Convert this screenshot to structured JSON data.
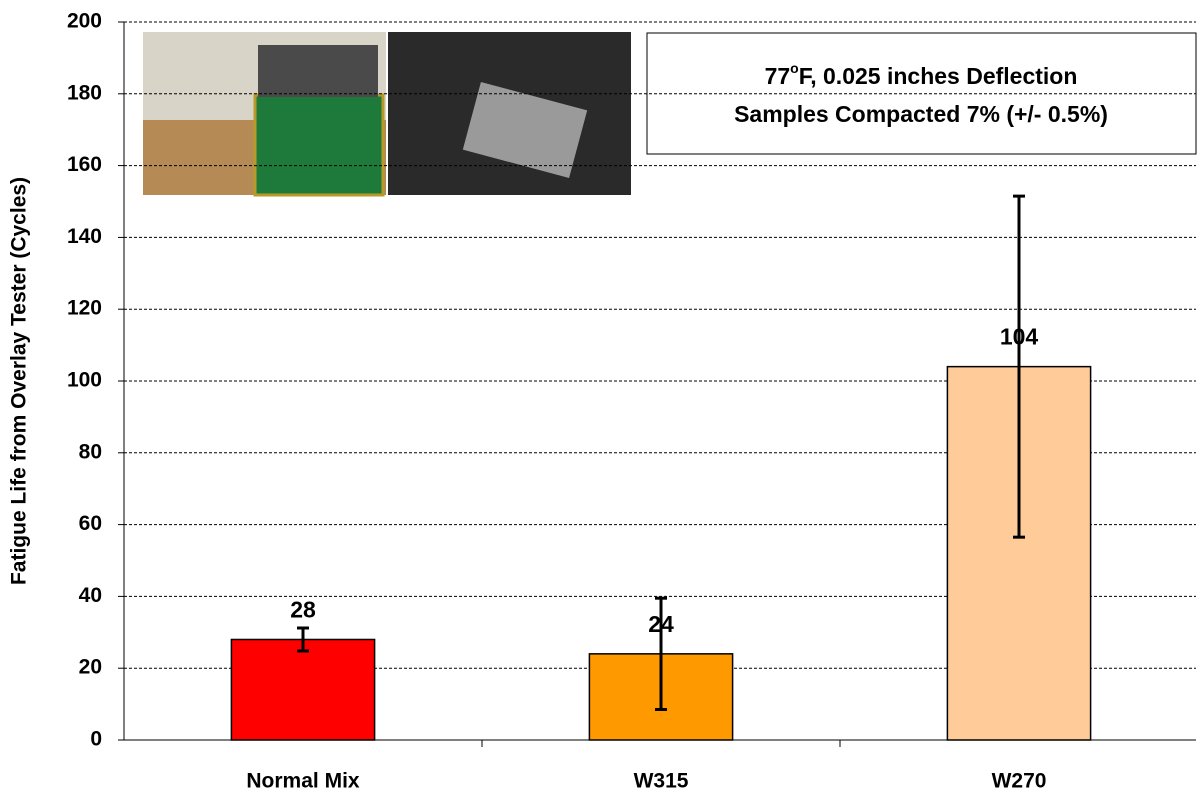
{
  "chart_data": {
    "type": "bar",
    "y_label": "Fatigue Life from Overlay Tester (Cycles)",
    "annotation": {
      "line1": [
        "77",
        "o",
        "F, 0.025 inches Deflection"
      ],
      "line2": "Samples Compacted 7% (+/- 0.5%)"
    },
    "categories": [
      "Normal Mix",
      "W315",
      "W270"
    ],
    "values": [
      28,
      24,
      104
    ],
    "errors": [
      3.2,
      15.5,
      47.5
    ],
    "colors": [
      "#ff0000",
      "#ff9900",
      "#ffcc99"
    ],
    "ylim": [
      0,
      200
    ],
    "yticks": [
      0,
      20,
      40,
      60,
      80,
      100,
      120,
      140,
      160,
      180,
      200
    ],
    "grid": true
  }
}
